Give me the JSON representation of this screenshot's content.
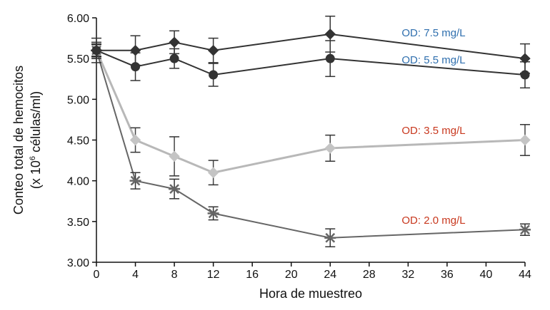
{
  "chart_data": {
    "type": "line",
    "xlabel": "Hora de muestreo",
    "ylabel_line1": "Conteo total de hemocitos",
    "ylabel_line2_prefix": "(x 10",
    "ylabel_line2_sup": "6",
    "ylabel_line2_suffix": " células/ml)",
    "xlim": [
      0,
      44
    ],
    "ylim": [
      3.0,
      6.0
    ],
    "x_ticks": [
      "0",
      "4",
      "8",
      "12",
      "16",
      "20",
      "24",
      "28",
      "32",
      "36",
      "40",
      "44"
    ],
    "y_ticks": [
      "3.00",
      "3.50",
      "4.00",
      "4.50",
      "5.00",
      "5.50",
      "6.00"
    ],
    "grid": false,
    "series": [
      {
        "name": "OD: 7.5 mg/L",
        "color": "#333333",
        "label_color": "#2f6fae",
        "marker": "diamond-dark",
        "x": [
          0,
          4,
          8,
          12,
          24,
          44
        ],
        "y": [
          5.6,
          5.6,
          5.7,
          5.6,
          5.8,
          5.5
        ],
        "err": [
          0.15,
          0.18,
          0.14,
          0.15,
          0.22,
          0.18
        ]
      },
      {
        "name": "OD: 5.5 mg/L",
        "color": "#333333",
        "label_color": "#2f6fae",
        "marker": "circle-dark",
        "x": [
          0,
          4,
          8,
          12,
          24,
          44
        ],
        "y": [
          5.6,
          5.4,
          5.5,
          5.3,
          5.5,
          5.3
        ],
        "err": [
          0.1,
          0.17,
          0.12,
          0.14,
          0.22,
          0.16
        ]
      },
      {
        "name": "OD: 3.5 mg/L",
        "color": "#b8b8b8",
        "label_color": "#c8381e",
        "marker": "diamond-light",
        "x": [
          0,
          4,
          8,
          12,
          24,
          44
        ],
        "y": [
          5.6,
          4.5,
          4.3,
          4.1,
          4.4,
          4.5
        ],
        "err": [
          0.08,
          0.15,
          0.24,
          0.15,
          0.16,
          0.19
        ]
      },
      {
        "name": "OD: 2.0 mg/L",
        "color": "#666666",
        "label_color": "#c8381e",
        "marker": "star",
        "x": [
          0,
          4,
          8,
          12,
          24,
          44
        ],
        "y": [
          5.6,
          4.0,
          3.9,
          3.6,
          3.3,
          3.4
        ],
        "err": [
          0.07,
          0.1,
          0.12,
          0.08,
          0.11,
          0.07
        ]
      }
    ]
  }
}
